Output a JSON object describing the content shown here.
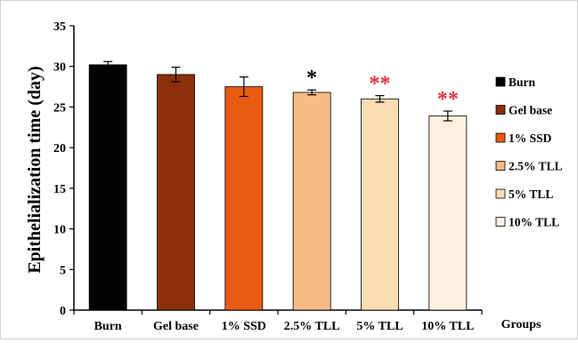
{
  "chart_data": {
    "type": "bar",
    "ylabel": "Epithelialization time (day)",
    "xlabel": "Groups",
    "ylim": [
      0,
      35
    ],
    "yticks": [
      0,
      5,
      10,
      15,
      20,
      25,
      30,
      35
    ],
    "categories": [
      "Burn",
      "Gel base",
      "1% SSD",
      "2.5% TLL",
      "5% TLL",
      "10% TLL"
    ],
    "values": [
      30.2,
      29.0,
      27.5,
      26.8,
      26.0,
      23.9
    ],
    "errors": [
      0.4,
      0.9,
      1.2,
      0.3,
      0.4,
      0.6
    ],
    "colors": [
      "#000000",
      "#8B2F0B",
      "#E95A12",
      "#F6BB86",
      "#FBDDB4",
      "#FDF0DE"
    ],
    "annotations": [
      "",
      "",
      "",
      "*",
      "**",
      "**"
    ],
    "annotation_colors": [
      "",
      "",
      "",
      "#000000",
      "#e8303a",
      "#e8303a"
    ],
    "grid": false,
    "legend_position": "right",
    "legend": [
      "Burn",
      "Gel base",
      "1% SSD",
      "2.5% TLL",
      "5% TLL",
      "10% TLL"
    ]
  }
}
